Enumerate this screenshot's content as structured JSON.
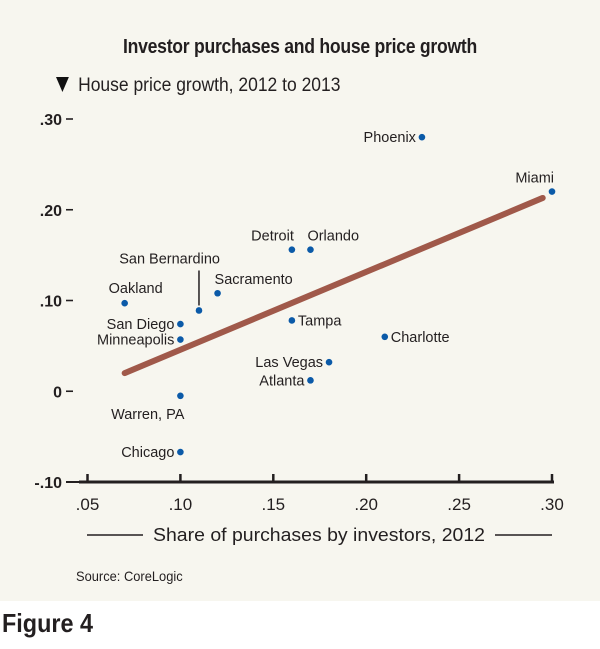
{
  "figure_label": "Figure 4",
  "source": "Source: CoreLogic",
  "chart_data": {
    "type": "scatter",
    "title": "Investor purchases and house price growth",
    "ylabel": "House price growth, 2012 to 2013",
    "xlabel": "Share of purchases by investors, 2012",
    "xlim": [
      0.05,
      0.3
    ],
    "ylim": [
      -0.1,
      0.3
    ],
    "x_ticks": [
      {
        "value": 0.05,
        "label": ".05"
      },
      {
        "value": 0.1,
        "label": ".10"
      },
      {
        "value": 0.15,
        "label": ".15"
      },
      {
        "value": 0.2,
        "label": ".20"
      },
      {
        "value": 0.25,
        "label": ".25"
      },
      {
        "value": 0.3,
        "label": ".30"
      }
    ],
    "y_ticks": [
      {
        "value": 0.3,
        "label": ".30"
      },
      {
        "value": 0.2,
        "label": ".20"
      },
      {
        "value": 0.1,
        "label": ".10"
      },
      {
        "value": 0.0,
        "label": "0"
      },
      {
        "value": -0.1,
        "label": "-.10"
      }
    ],
    "grid": false,
    "point_color": "#0b5aa8",
    "trend_color": "#a0594a",
    "points": [
      {
        "name": "Phoenix",
        "x": 0.23,
        "y": 0.28,
        "label_pos": "left"
      },
      {
        "name": "Miami",
        "x": 0.3,
        "y": 0.22,
        "label_pos": "above-left"
      },
      {
        "name": "Detroit",
        "x": 0.16,
        "y": 0.156,
        "label_pos": "above-left"
      },
      {
        "name": "Orlando",
        "x": 0.17,
        "y": 0.156,
        "label_pos": "above-right"
      },
      {
        "name": "San Bernardino",
        "x": 0.11,
        "y": 0.089,
        "label_pos": "leader"
      },
      {
        "name": "Sacramento",
        "x": 0.12,
        "y": 0.108,
        "label_pos": "above-right"
      },
      {
        "name": "Oakland",
        "x": 0.07,
        "y": 0.097,
        "label_pos": "above"
      },
      {
        "name": "San Diego",
        "x": 0.1,
        "y": 0.074,
        "label_pos": "left"
      },
      {
        "name": "Minneapolis",
        "x": 0.1,
        "y": 0.057,
        "label_pos": "left"
      },
      {
        "name": "Tampa",
        "x": 0.16,
        "y": 0.078,
        "label_pos": "right"
      },
      {
        "name": "Charlotte",
        "x": 0.21,
        "y": 0.06,
        "label_pos": "right"
      },
      {
        "name": "Las Vegas",
        "x": 0.18,
        "y": 0.032,
        "label_pos": "left"
      },
      {
        "name": "Atlanta",
        "x": 0.17,
        "y": 0.012,
        "label_pos": "left"
      },
      {
        "name": "Warren, PA",
        "x": 0.1,
        "y": -0.005,
        "label_pos": "below"
      },
      {
        "name": "Chicago",
        "x": 0.1,
        "y": -0.067,
        "label_pos": "left"
      }
    ],
    "trend_line": {
      "x": [
        0.07,
        0.295
      ],
      "y": [
        0.02,
        0.213
      ]
    }
  }
}
